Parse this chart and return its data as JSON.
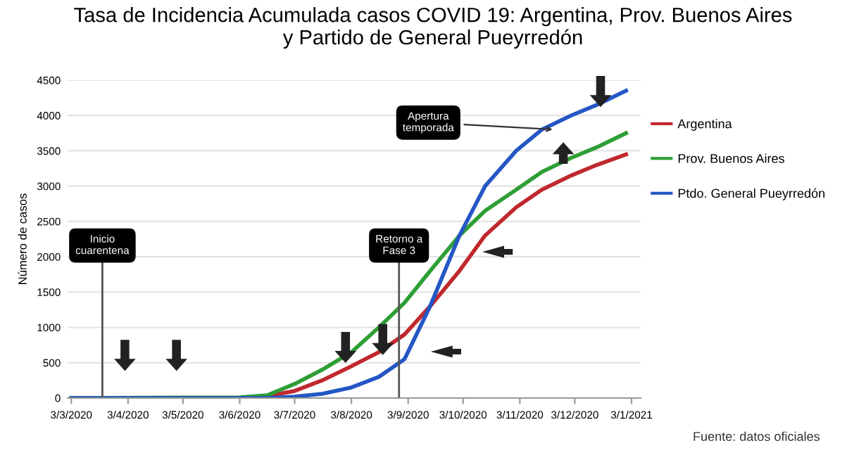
{
  "chart_data": {
    "type": "line",
    "title": "Tasa de Incidencia Acumulada casos COVID 19: Argentina, Prov. Buenos Aires\ny Partido de General Pueyrredón",
    "ylabel": "Número de casos",
    "x": [
      "2020-03-03",
      "2020-06-03",
      "2020-06-18",
      "2020-07-03",
      "2020-07-18",
      "2020-08-03",
      "2020-08-18",
      "2020-09-01",
      "2020-09-15",
      "2020-10-01",
      "2020-10-15",
      "2020-11-01",
      "2020-11-15",
      "2020-12-01",
      "2020-12-15",
      "2020-12-31"
    ],
    "series": [
      {
        "name": "Argentina",
        "color": "#c0282d",
        "values": [
          0,
          0,
          30,
          100,
          250,
          450,
          650,
          900,
          1300,
          1800,
          2300,
          2700,
          2950,
          3150,
          3300,
          3450
        ]
      },
      {
        "name": "Prov. Buenos Aires",
        "color": "#2e9e35",
        "values": [
          0,
          10,
          40,
          200,
          400,
          650,
          1000,
          1350,
          1800,
          2300,
          2650,
          2950,
          3200,
          3400,
          3550,
          3750
        ]
      },
      {
        "name": "Ptdo. General Pueyrredón",
        "color": "#2456c4",
        "values": [
          0,
          0,
          0,
          20,
          60,
          150,
          300,
          550,
          1300,
          2300,
          3000,
          3500,
          3800,
          4000,
          4150,
          4350
        ]
      }
    ],
    "xlim": [
      "2020-03-01",
      "2021-01-08"
    ],
    "xticks": [
      {
        "value": "2020-03-03",
        "label": "3/3/2020"
      },
      {
        "value": "2020-04-03",
        "label": "3/4/2020"
      },
      {
        "value": "2020-05-03",
        "label": "3/5/2020"
      },
      {
        "value": "2020-06-03",
        "label": "3/6/2020"
      },
      {
        "value": "2020-07-03",
        "label": "3/7/2020"
      },
      {
        "value": "2020-08-03",
        "label": "3/8/2020"
      },
      {
        "value": "2020-09-03",
        "label": "3/9/2020"
      },
      {
        "value": "2020-10-03",
        "label": "3/10/2020"
      },
      {
        "value": "2020-11-03",
        "label": "3/11/2020"
      },
      {
        "value": "2020-12-03",
        "label": "3/12/2020"
      },
      {
        "value": "2021-01-03",
        "label": "3/1/2021"
      }
    ],
    "ylim": [
      0,
      4500
    ],
    "yticks": [
      0,
      500,
      1000,
      1500,
      2000,
      2500,
      3000,
      3500,
      4000,
      4500
    ],
    "ref_lines": [
      {
        "axis": "x",
        "value": "2020-03-20",
        "label": "Inicio\ncuarentena",
        "color": "#555555"
      },
      {
        "axis": "x",
        "value": "2020-08-29",
        "label": "Retorno a\nFase 3",
        "color": "#555555"
      }
    ],
    "annotations": [
      {
        "text": "Apertura\ntemporada",
        "x": "2020-11-23",
        "y": 3800
      },
      "Fuente: datos oficiales"
    ],
    "grid": "y",
    "legend": "right",
    "line_style": "solid"
  }
}
